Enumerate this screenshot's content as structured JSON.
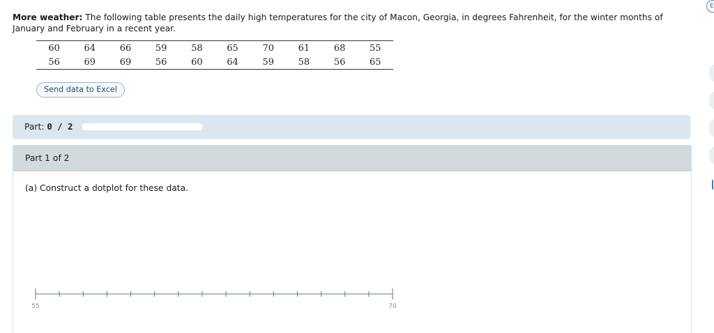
{
  "problem": {
    "bold_lead": "More weather:",
    "text": "The following table presents the daily high temperatures for the city of Macon, Georgia, in degrees Fahrenheit, for the winter months of January and February in a recent year."
  },
  "table": {
    "rows": [
      [
        "60",
        "64",
        "66",
        "59",
        "58",
        "65",
        "70",
        "61",
        "68",
        "55"
      ],
      [
        "56",
        "69",
        "69",
        "56",
        "60",
        "64",
        "59",
        "58",
        "56",
        "65"
      ]
    ]
  },
  "excel_button": {
    "label": "Send data to Excel"
  },
  "progress": {
    "label": "Part:",
    "value": "0 / 2",
    "fraction": 0
  },
  "part": {
    "header": "Part 1 of 2",
    "question": "(a) Construct a dotplot for these data."
  },
  "dotplot_axis": {
    "min": 55,
    "max": 70,
    "step": 1,
    "min_label": "55",
    "max_label": "70"
  },
  "side_button": {
    "label": "Es"
  },
  "colors": {
    "part_bar": "#dbe6f0",
    "part_header": "#d3dade",
    "progress_fill": "#2f7fc1",
    "axis": "#5a7d99"
  }
}
